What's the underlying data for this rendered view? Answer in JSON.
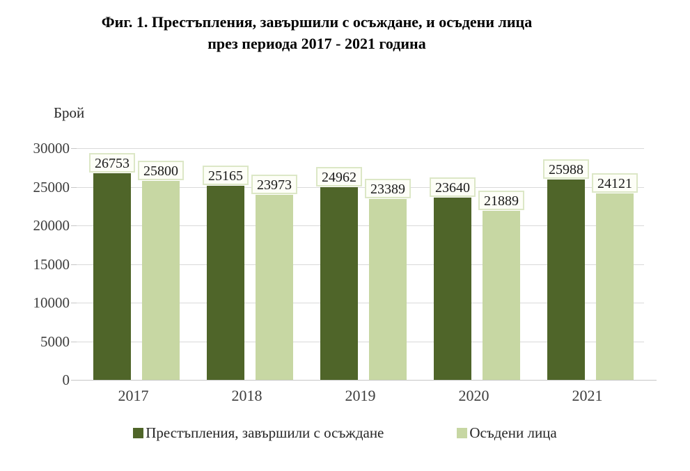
{
  "title": {
    "line1": "Фиг. 1. Престъпления, завършили с осъждане, и осъдени лица",
    "line2": "през периода 2017 - 2021 година"
  },
  "y_axis_unit": "Брой",
  "chart_data": {
    "type": "bar",
    "title": "Фиг. 1. Престъпления, завършили с осъждане, и осъдени лица през периода 2017 - 2021 година",
    "categories": [
      "2017",
      "2018",
      "2019",
      "2020",
      "2021"
    ],
    "series": [
      {
        "name": "Престъпления, завършили с осъждане",
        "color": "#4f6529",
        "values": [
          26753,
          25165,
          24962,
          23640,
          25988
        ]
      },
      {
        "name": "Осъдени лица",
        "color": "#c7d7a3",
        "values": [
          25800,
          23973,
          23389,
          21889,
          24121
        ]
      }
    ],
    "xlabel": "",
    "ylabel": "Брой",
    "ylim": [
      0,
      30000
    ],
    "y_ticks": [
      0,
      5000,
      10000,
      15000,
      20000,
      25000,
      30000
    ],
    "grid": "horizontal",
    "legend_position": "bottom",
    "data_labels": true
  },
  "colors": {
    "label_box_border": "#dce7c6",
    "label_box_bg": "#fdfef7",
    "gridline": "#d9d9d9",
    "axis_line": "#c6c6c6"
  }
}
